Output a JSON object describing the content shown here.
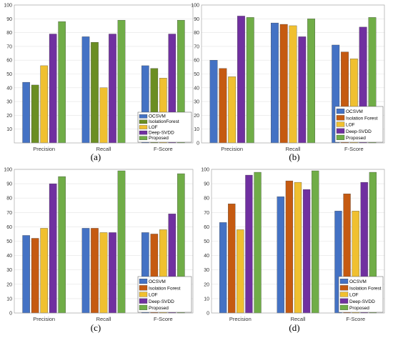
{
  "colors": {
    "OCSVM": "#4472c4",
    "IsolationForest_a": "#6b8e23",
    "IsolationForest": "#c55a11",
    "LOF": "#f0c030",
    "DeepSVDD": "#7030a0",
    "Proposed": "#70ad47"
  },
  "chart_data": [
    {
      "type": "bar",
      "panel_label": "(a)",
      "categories": [
        "Precision",
        "Recall",
        "F-Score"
      ],
      "ylim": [
        0,
        100
      ],
      "yticks": [
        10,
        20,
        30,
        40,
        50,
        60,
        70,
        80,
        90,
        100
      ],
      "grid": true,
      "legend_position": "bottom-right",
      "series": [
        {
          "name": "OCSVM",
          "values": [
            44,
            77,
            56
          ]
        },
        {
          "name": "IsolationForest",
          "values": [
            42,
            73,
            54
          ]
        },
        {
          "name": "LOF",
          "values": [
            56,
            40,
            47
          ]
        },
        {
          "name": "Deep-SVDD",
          "values": [
            79,
            79,
            79
          ]
        },
        {
          "name": "Proposed",
          "values": [
            88,
            89,
            89
          ]
        }
      ]
    },
    {
      "type": "bar",
      "panel_label": "(b)",
      "categories": [
        "Precision",
        "Recall",
        "F-Score"
      ],
      "ylim": [
        0,
        100
      ],
      "yticks": [
        0,
        10,
        20,
        30,
        40,
        50,
        60,
        70,
        80,
        90,
        100
      ],
      "grid": true,
      "legend_position": "bottom-right",
      "series": [
        {
          "name": "OCSVM",
          "values": [
            60,
            87,
            71
          ]
        },
        {
          "name": "Isolation Forest",
          "values": [
            54,
            86,
            66
          ]
        },
        {
          "name": "LOF",
          "values": [
            48,
            85,
            61
          ]
        },
        {
          "name": "Deep-SVDD",
          "values": [
            92,
            77,
            84
          ]
        },
        {
          "name": "Proposed",
          "values": [
            91,
            90,
            91
          ]
        }
      ]
    },
    {
      "type": "bar",
      "panel_label": "(c)",
      "categories": [
        "Precision",
        "Recall",
        "F-Score"
      ],
      "ylim": [
        0,
        100
      ],
      "yticks": [
        0,
        10,
        20,
        30,
        40,
        50,
        60,
        70,
        80,
        90,
        100
      ],
      "grid": true,
      "legend_position": "bottom-right",
      "series": [
        {
          "name": "OCSVM",
          "values": [
            54,
            59,
            56
          ]
        },
        {
          "name": "Isolation Forest",
          "values": [
            52,
            59,
            55
          ]
        },
        {
          "name": "LOF",
          "values": [
            59,
            56,
            58
          ]
        },
        {
          "name": "Deep-SVDD",
          "values": [
            90,
            56,
            69
          ]
        },
        {
          "name": "Proposed",
          "values": [
            95,
            99,
            97
          ]
        }
      ]
    },
    {
      "type": "bar",
      "panel_label": "(d)",
      "categories": [
        "Precision",
        "Recall",
        "F-Score"
      ],
      "ylim": [
        0,
        100
      ],
      "yticks": [
        0,
        10,
        20,
        30,
        40,
        50,
        60,
        70,
        80,
        90,
        100
      ],
      "grid": true,
      "legend_position": "bottom-right",
      "series": [
        {
          "name": "OCSVM",
          "values": [
            63,
            81,
            71
          ]
        },
        {
          "name": "Isolation Forest",
          "values": [
            76,
            92,
            83
          ]
        },
        {
          "name": "LOF",
          "values": [
            58,
            91,
            71
          ]
        },
        {
          "name": "Deep-SVDD",
          "values": [
            96,
            86,
            91
          ]
        },
        {
          "name": "Proposed",
          "values": [
            98,
            99,
            98
          ]
        }
      ]
    }
  ]
}
